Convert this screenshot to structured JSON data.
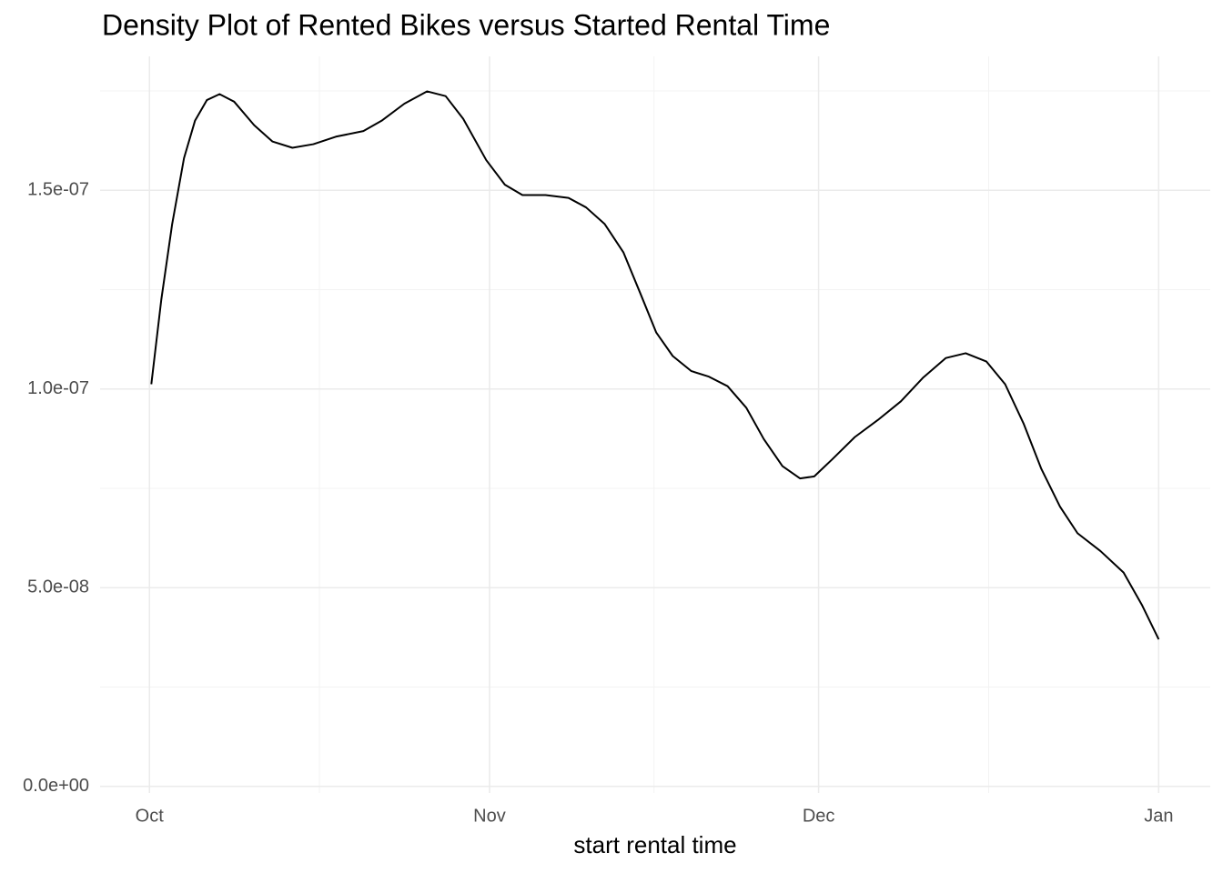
{
  "chart_data": {
    "type": "line",
    "title": "Density Plot of Rented Bikes versus Started Rental Time",
    "x_label": "start rental time",
    "x": [
      0.17,
      1.08,
      2.07,
      3.15,
      4.15,
      5.23,
      6.39,
      7.72,
      9.54,
      11.2,
      13.03,
      14.94,
      17.0,
      19.5,
      21.16,
      23.24,
      25.3,
      27.0,
      28.6,
      30.7,
      32.4,
      34.0,
      36.1,
      38.2,
      39.8,
      41.5,
      43.2,
      44.8,
      46.2,
      47.7,
      49.4,
      51.0,
      52.7,
      54.4,
      56.0,
      57.7,
      59.3,
      60.6,
      62.2,
      64.3,
      66.4,
      68.5,
      70.5,
      72.6,
      74.4,
      76.3,
      78.0,
      79.7,
      81.3,
      83.0,
      84.6,
      86.7,
      88.8,
      90.5,
      92.0
    ],
    "series": [
      {
        "color": "#000000",
        "values": [
          1.012e-07,
          1.225e-07,
          1.415e-07,
          1.581e-07,
          1.675e-07,
          1.727e-07,
          1.742e-07,
          1.723e-07,
          1.664e-07,
          1.623e-07,
          1.607e-07,
          1.616e-07,
          1.635e-07,
          1.649e-07,
          1.675e-07,
          1.718e-07,
          1.749e-07,
          1.737e-07,
          1.68e-07,
          1.576e-07,
          1.514e-07,
          1.488e-07,
          1.488e-07,
          1.481e-07,
          1.457e-07,
          1.415e-07,
          1.344e-07,
          1.237e-07,
          1.142e-07,
          1.083e-07,
          1.045e-07,
          1.031e-07,
          1.007e-07,
          9.53e-08,
          8.74e-08,
          8.06e-08,
          7.75e-08,
          7.8e-08,
          8.22e-08,
          8.79e-08,
          9.22e-08,
          9.69e-08,
          1.028e-07,
          1.078e-07,
          1.09e-07,
          1.069e-07,
          1.012e-07,
          9.12e-08,
          7.99e-08,
          7.04e-08,
          6.37e-08,
          5.92e-08,
          5.38e-08,
          4.55e-08,
          3.7e-08
        ]
      }
    ],
    "xlim": [
      -4.5,
      96.7
    ],
    "xticks": [
      {
        "value": 0,
        "label": "Oct"
      },
      {
        "value": 31,
        "label": "Nov"
      },
      {
        "value": 61,
        "label": "Dec"
      },
      {
        "value": 92,
        "label": "Jan"
      }
    ],
    "ylim": [
      -1.66e-09,
      1.837e-07
    ],
    "yticks": [
      {
        "value": 0,
        "label": "0.0e+00"
      },
      {
        "value": 5e-08,
        "label": "5.0e-08"
      },
      {
        "value": 1e-07,
        "label": "1.0e-07"
      },
      {
        "value": 1.5e-07,
        "label": "1.5e-07"
      }
    ],
    "grid": true
  }
}
